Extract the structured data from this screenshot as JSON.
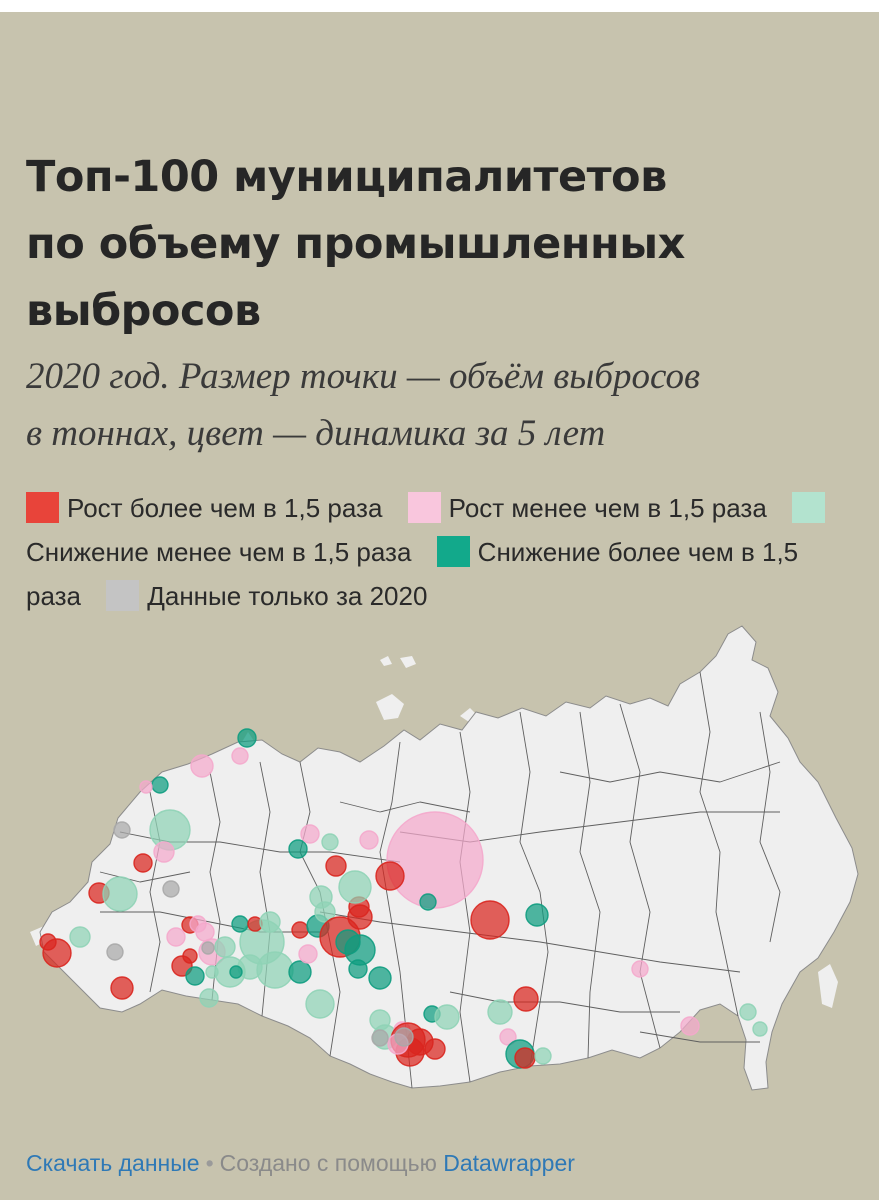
{
  "title": "Топ-100 муниципалитетов по объему промышленных выбросов",
  "subtitle": "2020 год. Размер точки — объём выбросов в тоннах, цвет — динамика за 5 лет",
  "legend": [
    {
      "label": "Рост более чем в 1,5 раза",
      "color": "#e8443a"
    },
    {
      "label": "Рост менее чем в 1,5 раза",
      "color": "#f9c6dd"
    },
    {
      "label": "Снижение менее чем в 1,5 раза",
      "color": "#b3e3cf"
    },
    {
      "label": "Снижение более чем в 1,5 раза",
      "color": "#12a98b"
    },
    {
      "label": "Данные только за 2020",
      "color": "#c4c4c4"
    }
  ],
  "category_colors": {
    "growth_high": "#d9261f",
    "growth_low": "#f4a9cc",
    "decline_low": "#8fd3b6",
    "decline_high": "#0e9c80",
    "only_2020": "#a9a9a9"
  },
  "map": {
    "land_color": "#efefef",
    "border_color": "#5f5f5f",
    "background": "#c7c3ae"
  },
  "footer": {
    "download": "Скачать данные",
    "separator": "•",
    "created_with": "Создано с помощью",
    "tool": "Datawrapper"
  }
}
